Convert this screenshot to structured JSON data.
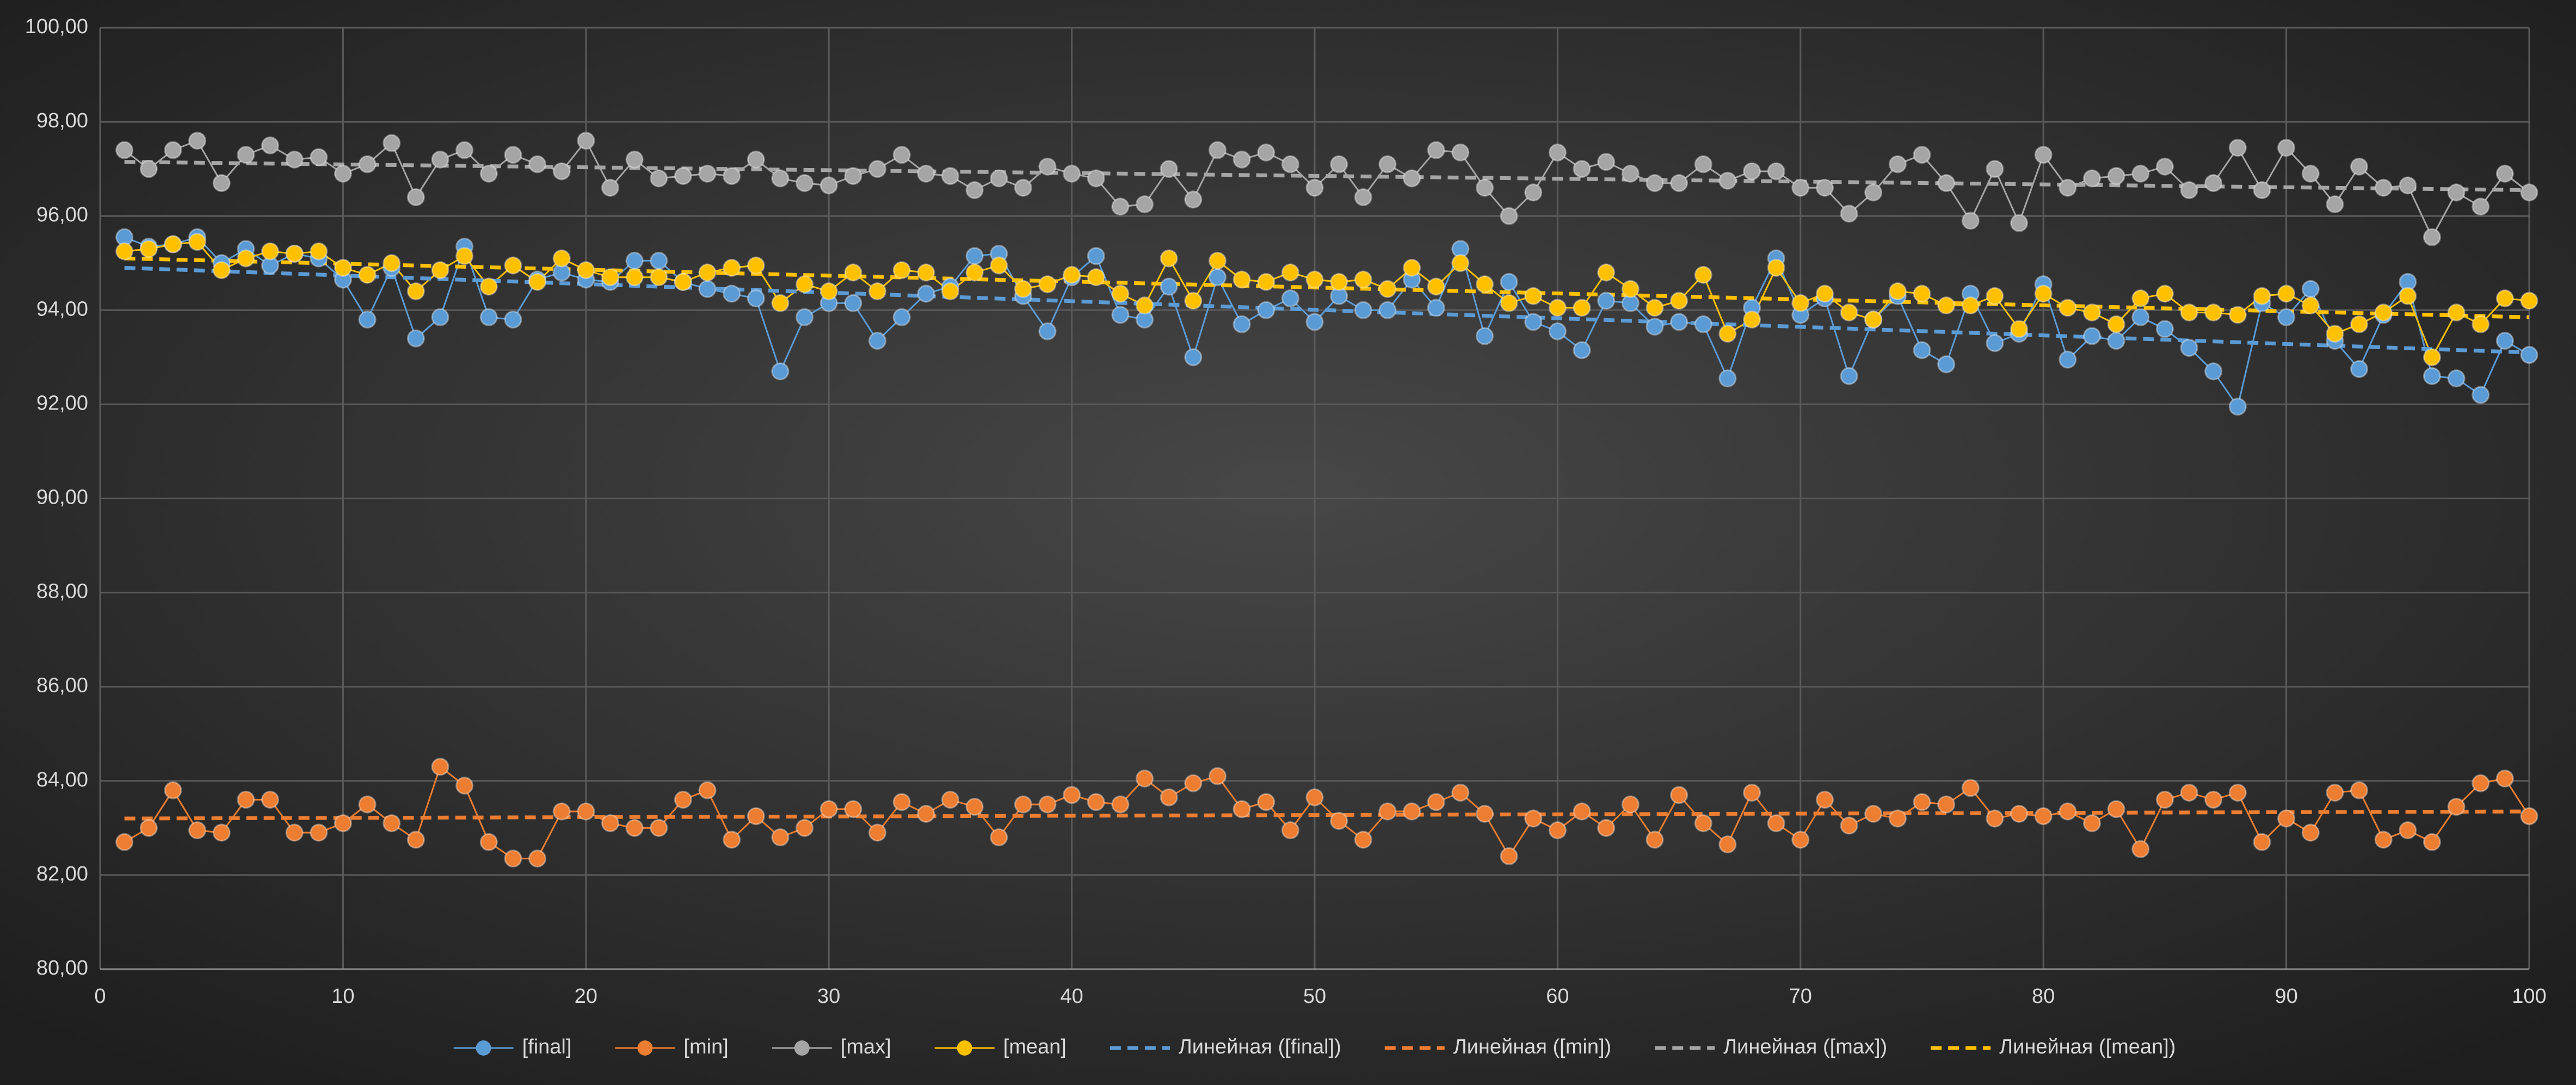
{
  "chart_data": {
    "type": "line",
    "x": [
      1,
      2,
      3,
      4,
      5,
      6,
      7,
      8,
      9,
      10,
      11,
      12,
      13,
      14,
      15,
      16,
      17,
      18,
      19,
      20,
      21,
      22,
      23,
      24,
      25,
      26,
      27,
      28,
      29,
      30,
      31,
      32,
      33,
      34,
      35,
      36,
      37,
      38,
      39,
      40,
      41,
      42,
      43,
      44,
      45,
      46,
      47,
      48,
      49,
      50,
      51,
      52,
      53,
      54,
      55,
      56,
      57,
      58,
      59,
      60,
      61,
      62,
      63,
      64,
      65,
      66,
      67,
      68,
      69,
      70,
      71,
      72,
      73,
      74,
      75,
      76,
      77,
      78,
      79,
      80,
      81,
      82,
      83,
      84,
      85,
      86,
      87,
      88,
      89,
      90,
      91,
      92,
      93,
      94,
      95,
      96,
      97,
      98,
      99,
      100
    ],
    "series": [
      {
        "name": "[final]",
        "color": "#5b9bd5",
        "values": [
          95.55,
          95.35,
          95.4,
          95.55,
          95.0,
          95.3,
          94.95,
          95.2,
          95.1,
          94.65,
          93.8,
          94.9,
          93.4,
          93.85,
          95.35,
          93.85,
          93.8,
          94.65,
          94.8,
          94.65,
          94.6,
          95.05,
          95.05,
          94.6,
          94.45,
          94.35,
          94.25,
          92.7,
          93.85,
          94.15,
          94.15,
          93.35,
          93.85,
          94.35,
          94.5,
          95.15,
          95.2,
          94.3,
          93.55,
          94.7,
          95.15,
          93.9,
          93.8,
          94.5,
          93.0,
          94.7,
          93.7,
          94.0,
          94.25,
          93.75,
          94.3,
          94.0,
          94.0,
          94.65,
          94.05,
          95.3,
          93.45,
          94.6,
          93.75,
          93.55,
          93.15,
          94.2,
          94.15,
          93.65,
          93.75,
          93.7,
          92.55,
          94.05,
          95.1,
          93.9,
          94.25,
          92.6,
          93.8,
          94.3,
          93.15,
          92.85,
          94.35,
          93.3,
          93.5,
          94.55,
          92.95,
          93.45,
          93.35,
          93.85,
          93.6,
          93.2,
          92.7,
          91.95,
          94.15,
          93.85,
          94.45,
          93.35,
          92.75,
          93.9,
          94.6,
          92.6,
          92.55,
          92.2,
          93.35,
          93.05
        ]
      },
      {
        "name": "[min]",
        "color": "#ed7d31",
        "values": [
          82.7,
          83.0,
          83.8,
          82.95,
          82.9,
          83.6,
          83.6,
          82.9,
          82.9,
          83.1,
          83.5,
          83.1,
          82.75,
          84.3,
          83.9,
          82.7,
          82.35,
          82.35,
          83.35,
          83.35,
          83.1,
          83.0,
          83.0,
          83.6,
          83.8,
          82.75,
          83.25,
          82.8,
          83.0,
          83.4,
          83.4,
          82.9,
          83.55,
          83.3,
          83.6,
          83.45,
          82.8,
          83.5,
          83.5,
          83.7,
          83.55,
          83.5,
          84.05,
          83.65,
          83.95,
          84.1,
          83.4,
          83.55,
          82.95,
          83.65,
          83.15,
          82.75,
          83.35,
          83.35,
          83.55,
          83.75,
          83.3,
          82.4,
          83.2,
          82.95,
          83.35,
          83.0,
          83.5,
          82.75,
          83.7,
          83.1,
          82.65,
          83.75,
          83.1,
          82.75,
          83.6,
          83.05,
          83.3,
          83.2,
          83.55,
          83.5,
          83.85,
          83.2,
          83.3,
          83.25,
          83.35,
          83.1,
          83.4,
          82.55,
          83.6,
          83.75,
          83.6,
          83.75,
          82.7,
          83.2,
          82.9,
          83.75,
          83.8,
          82.75,
          82.95,
          82.7,
          83.45,
          83.95,
          84.05,
          83.25
        ]
      },
      {
        "name": "[max]",
        "color": "#a5a5a5",
        "values": [
          97.4,
          97.0,
          97.4,
          97.6,
          96.7,
          97.3,
          97.5,
          97.2,
          97.25,
          96.9,
          97.1,
          97.55,
          96.4,
          97.2,
          97.4,
          96.9,
          97.3,
          97.1,
          96.95,
          97.6,
          96.6,
          97.2,
          96.8,
          96.85,
          96.9,
          96.85,
          97.2,
          96.8,
          96.7,
          96.65,
          96.85,
          97.0,
          97.3,
          96.9,
          96.85,
          96.55,
          96.8,
          96.6,
          97.05,
          96.9,
          96.8,
          96.2,
          96.25,
          97.0,
          96.35,
          97.4,
          97.2,
          97.35,
          97.1,
          96.6,
          97.1,
          96.4,
          97.1,
          96.8,
          97.4,
          97.35,
          96.6,
          96.0,
          96.5,
          97.35,
          97.0,
          97.15,
          96.9,
          96.7,
          96.7,
          97.1,
          96.75,
          96.95,
          96.95,
          96.6,
          96.6,
          96.05,
          96.5,
          97.1,
          97.3,
          96.7,
          95.9,
          97.0,
          95.85,
          97.3,
          96.6,
          96.8,
          96.85,
          96.9,
          97.05,
          96.55,
          96.7,
          97.45,
          96.55,
          97.45,
          96.9,
          96.25,
          97.05,
          96.6,
          96.65,
          95.55,
          96.5,
          96.2,
          96.9,
          96.5
        ]
      },
      {
        "name": "[mean]",
        "color": "#ffc000",
        "values": [
          95.25,
          95.3,
          95.4,
          95.45,
          94.85,
          95.1,
          95.25,
          95.2,
          95.25,
          94.9,
          94.75,
          95.0,
          94.4,
          94.85,
          95.15,
          94.5,
          94.95,
          94.6,
          95.1,
          94.85,
          94.7,
          94.7,
          94.7,
          94.6,
          94.8,
          94.9,
          94.95,
          94.15,
          94.55,
          94.4,
          94.8,
          94.4,
          94.85,
          94.8,
          94.4,
          94.8,
          94.95,
          94.45,
          94.55,
          94.75,
          94.7,
          94.35,
          94.1,
          95.1,
          94.2,
          95.05,
          94.65,
          94.6,
          94.8,
          94.65,
          94.6,
          94.65,
          94.45,
          94.9,
          94.5,
          95.0,
          94.55,
          94.15,
          94.3,
          94.05,
          94.05,
          94.8,
          94.45,
          94.05,
          94.2,
          94.75,
          93.5,
          93.8,
          94.9,
          94.15,
          94.35,
          93.95,
          93.8,
          94.4,
          94.35,
          94.1,
          94.1,
          94.3,
          93.6,
          94.35,
          94.05,
          93.95,
          93.7,
          94.25,
          94.35,
          93.95,
          93.95,
          93.9,
          94.3,
          94.35,
          94.1,
          93.5,
          93.7,
          93.95,
          94.3,
          93.0,
          93.95,
          93.7,
          94.25,
          94.2
        ]
      }
    ],
    "trendlines": [
      {
        "name": "Линейная ([final])",
        "color": "#5b9bd5",
        "x": [
          1,
          100
        ],
        "values": [
          94.9,
          93.1
        ]
      },
      {
        "name": "Линейная ([min])",
        "color": "#ed7d31",
        "x": [
          1,
          100
        ],
        "values": [
          83.2,
          83.35
        ]
      },
      {
        "name": "Линейная ([max])",
        "color": "#a5a5a5",
        "x": [
          1,
          100
        ],
        "values": [
          97.15,
          96.55
        ]
      },
      {
        "name": "Линейная ([mean])",
        "color": "#ffc000",
        "x": [
          1,
          100
        ],
        "values": [
          95.1,
          93.85
        ]
      }
    ],
    "xlim": [
      0,
      100
    ],
    "xticks": [
      0,
      10,
      20,
      30,
      40,
      50,
      60,
      70,
      80,
      90,
      100
    ],
    "ylim": [
      80,
      100
    ],
    "yticks": [
      {
        "value": 80,
        "label": "80,00"
      },
      {
        "value": 82,
        "label": "82,00"
      },
      {
        "value": 84,
        "label": "84,00"
      },
      {
        "value": 86,
        "label": "86,00"
      },
      {
        "value": 88,
        "label": "88,00"
      },
      {
        "value": 90,
        "label": "90,00"
      },
      {
        "value": 92,
        "label": "92,00"
      },
      {
        "value": 94,
        "label": "94,00"
      },
      {
        "value": 96,
        "label": "96,00"
      },
      {
        "value": 98,
        "label": "98,00"
      },
      {
        "value": 100,
        "label": "100,00"
      }
    ],
    "grid": true,
    "legend": "bottom"
  }
}
